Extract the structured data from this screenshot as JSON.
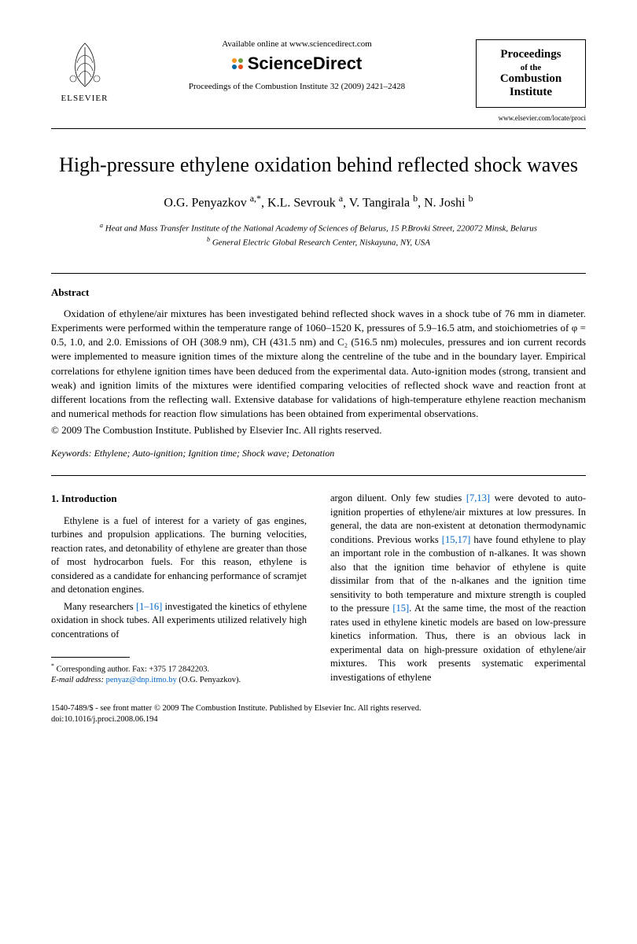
{
  "header": {
    "elsevier_label": "ELSEVIER",
    "available_online": "Available online at www.sciencedirect.com",
    "sciencedirect": "ScienceDirect",
    "journal_ref": "Proceedings of the Combustion Institute 32 (2009) 2421–2428",
    "journal_box": {
      "line1": "Proceedings",
      "line2": "of the",
      "line3": "Combustion",
      "line4": "Institute"
    },
    "journal_url": "www.elsevier.com/locate/proci",
    "sd_colors": [
      "#f7941e",
      "#6c9d3e",
      "#0066a4",
      "#e84e1b"
    ]
  },
  "title": "High-pressure ethylene oxidation behind reflected shock waves",
  "authors_html": "O.G. Penyazkov <sup>a,*</sup>, K.L. Sevrouk <sup>a</sup>, V. Tangirala <sup>b</sup>, N. Joshi <sup>b</sup>",
  "affiliations": {
    "a": "Heat and Mass Transfer Institute of the National Academy of Sciences of Belarus, 15 P.Brovki Street, 220072 Minsk, Belarus",
    "b": "General Electric Global Research Center, Niskayuna, NY, USA"
  },
  "abstract": {
    "heading": "Abstract",
    "text": "Oxidation of ethylene/air mixtures has been investigated behind reflected shock waves in a shock tube of 76 mm in diameter. Experiments were performed within the temperature range of 1060–1520 K, pressures of 5.9–16.5 atm, and stoichiometries of φ = 0.5, 1.0, and 2.0. Emissions of OH (308.9 nm), CH (431.5 nm) and C₂ (516.5 nm) molecules, pressures and ion current records were implemented to measure ignition times of the mixture along the centreline of the tube and in the boundary layer. Empirical correlations for ethylene ignition times have been deduced from the experimental data. Auto-ignition modes (strong, transient and weak) and ignition limits of the mixtures were identified comparing velocities of reflected shock wave and reaction front at different locations from the reflecting wall. Extensive database for validations of high-temperature ethylene reaction mechanism and numerical methods for reaction flow simulations has been obtained from experimental observations.",
    "copyright": "© 2009 The Combustion Institute. Published by Elsevier Inc. All rights reserved."
  },
  "keywords": {
    "label": "Keywords:",
    "text": "Ethylene; Auto-ignition; Ignition time; Shock wave; Detonation"
  },
  "intro": {
    "heading": "1. Introduction",
    "p1": "Ethylene is a fuel of interest for a variety of gas engines, turbines and propulsion applications. The burning velocities, reaction rates, and detonability of ethylene are greater than those of most hydrocarbon fuels. For this reason, ethylene is considered as a candidate for enhancing performance of scramjet and detonation engines.",
    "p2_pre": "Many researchers ",
    "p2_ref": "[1–16]",
    "p2_post": " investigated the kinetics of ethylene oxidation in shock tubes. All experiments utilized relatively high concentrations of",
    "col2_pre": "argon diluent. Only few studies ",
    "col2_ref1": "[7,13]",
    "col2_mid1": " were devoted to auto-ignition properties of ethylene/air mixtures at low pressures. In general, the data are non-existent at detonation thermodynamic conditions. Previous works ",
    "col2_ref2": "[15,17]",
    "col2_mid2": " have found ethylene to play an important role in the combustion of n-alkanes. It was shown also that the ignition time behavior of ethylene is quite dissimilar from that of the n-alkanes and the ignition time sensitivity to both temperature and mixture strength is coupled to the pressure ",
    "col2_ref3": "[15]",
    "col2_post": ". At the same time, the most of the reaction rates used in ethylene kinetic models are based on low-pressure kinetics information. Thus, there is an obvious lack in experimental data on high-pressure oxidation of ethylene/air mixtures. This work presents systematic experimental investigations of ethylene"
  },
  "footnote": {
    "corresponding": "Corresponding author. Fax: +375 17 2842203.",
    "email_label": "E-mail address:",
    "email": "penyaz@dnp.itmo.by",
    "email_suffix": "(O.G. Penyazkov)."
  },
  "footer": {
    "line1": "1540-7489/$ - see front matter © 2009 The Combustion Institute. Published by Elsevier Inc. All rights reserved.",
    "line2": "doi:10.1016/j.proci.2008.06.194"
  },
  "colors": {
    "link": "#0066cc",
    "text": "#000000",
    "bg": "#ffffff"
  }
}
